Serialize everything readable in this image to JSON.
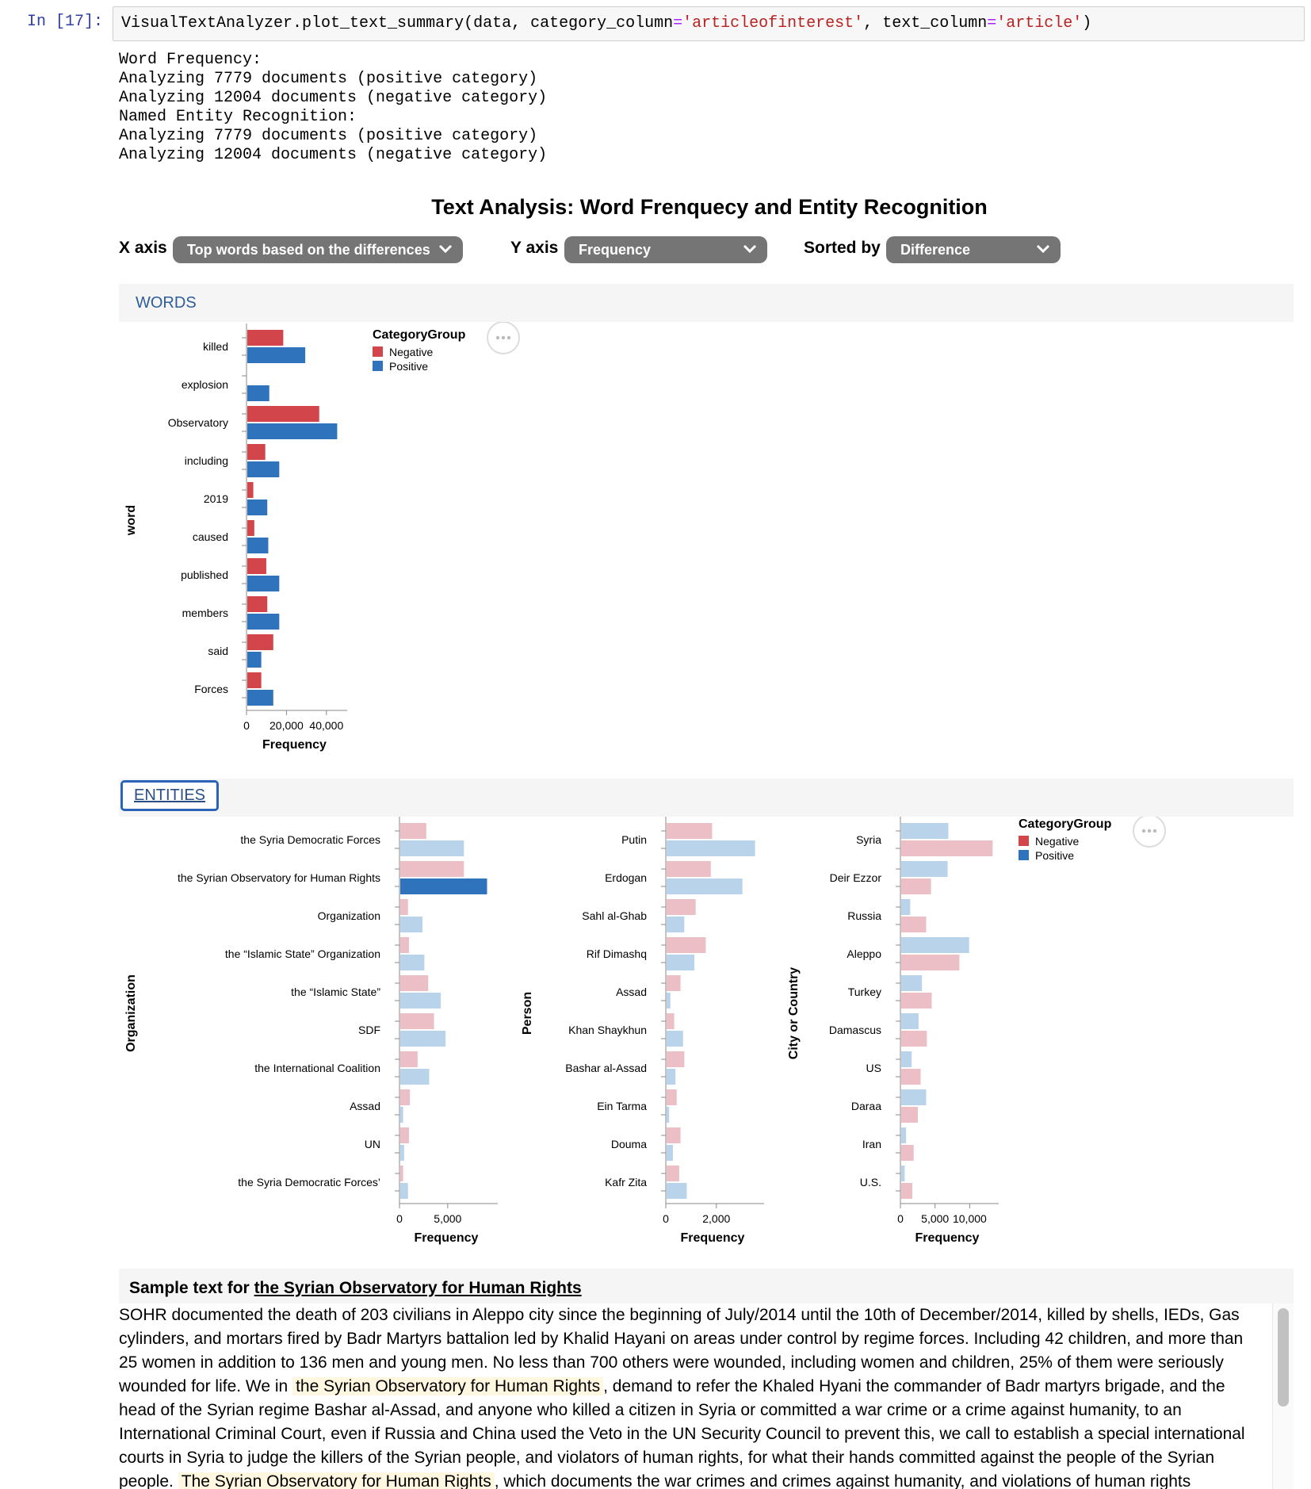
{
  "cell": {
    "prompt": "In [17]:",
    "code": {
      "pre": "VisualTextAnalyzer.plot_text_summary(data, category_column",
      "eq1": "=",
      "str1": "'articleofinterest'",
      "mid": ", text_column",
      "eq2": "=",
      "str2": "'article'",
      "post": ")"
    },
    "stdout": [
      "Word Frequency:",
      "Analyzing 7779 documents (positive category)",
      "Analyzing 12004 documents (negative category)",
      "Named Entity Recognition:",
      "Analyzing 7779 documents (positive category)",
      "Analyzing 12004 documents (negative category)"
    ]
  },
  "title": "Text Analysis: Word Frenquecy and Entity Recognition",
  "controls": {
    "x_label": "X axis",
    "x_value": "Top words based on the differences",
    "y_label": "Y axis",
    "y_value": "Frequency",
    "sort_label": "Sorted by",
    "sort_value": "Difference"
  },
  "tabs": {
    "words": "WORDS",
    "entities": "ENTITIES"
  },
  "colors": {
    "negative": "#d1454b",
    "positive": "#2f73bc",
    "negative_faded": "#ecbfc6",
    "positive_faded": "#b9d4ea",
    "highlight": "#fff7df"
  },
  "chart_data": [
    {
      "type": "bar",
      "orientation": "horizontal",
      "ylabel": "word",
      "xlabel": "Frequency",
      "xticks": [
        "0",
        "20,000",
        "40,000"
      ],
      "xlim": [
        0,
        48000
      ],
      "legend": {
        "title": "CategoryGroup",
        "items": [
          "Negative",
          "Positive"
        ],
        "placement": "top-right"
      },
      "categories": [
        "killed",
        "explosion",
        "Observatory",
        "including",
        "2019",
        "caused",
        "published",
        "members",
        "said",
        "Forces"
      ],
      "series": [
        {
          "name": "Negative",
          "values": [
            18000,
            0,
            36000,
            9000,
            3000,
            3500,
            9500,
            10000,
            13000,
            7000
          ]
        },
        {
          "name": "Positive",
          "values": [
            29000,
            11000,
            45000,
            16000,
            10000,
            10500,
            16000,
            16000,
            7000,
            13000
          ]
        }
      ]
    },
    {
      "type": "bar",
      "orientation": "horizontal",
      "ylabel": "Organization",
      "xlabel": "Frequency",
      "xticks": [
        "0",
        "5,000"
      ],
      "xlim": [
        0,
        9700
      ],
      "selected": "the Syrian Observatory for Human Rights",
      "categories": [
        "the Syria Democratic Forces",
        "the Syrian Observatory for Human Rights",
        "Organization",
        "the “Islamic State” Organization",
        "the “Islamic State”",
        "SDF",
        "the International Coalition",
        "Assad",
        "UN",
        "the Syria Democratic Forces’"
      ],
      "series": [
        {
          "name": "Negative",
          "values": [
            2700,
            6600,
            800,
            900,
            2900,
            3500,
            1800,
            1000,
            900,
            300
          ]
        },
        {
          "name": "Positive",
          "values": [
            6600,
            9000,
            2300,
            2500,
            4200,
            4700,
            3000,
            300,
            400,
            800
          ]
        }
      ]
    },
    {
      "type": "bar",
      "orientation": "horizontal",
      "ylabel": "Person",
      "xlabel": "Frequency",
      "xticks": [
        "0",
        "2,000"
      ],
      "xlim": [
        0,
        3700
      ],
      "categories": [
        "Putin",
        "Erdogan",
        "Sahl al-Ghab",
        "Rif Dimashq",
        "Assad",
        "Khan Shaykhun",
        "Bashar al-Assad",
        "Ein Tarma",
        "Douma",
        "Kafr Zita"
      ],
      "series": [
        {
          "name": "Negative",
          "values": [
            1800,
            1750,
            1150,
            1550,
            550,
            300,
            700,
            400,
            550,
            500
          ]
        },
        {
          "name": "Positive",
          "values": [
            3500,
            3000,
            700,
            1100,
            150,
            650,
            350,
            100,
            250,
            800
          ]
        }
      ]
    },
    {
      "type": "bar",
      "orientation": "horizontal",
      "ylabel": "City or Country",
      "xlabel": "Frequency",
      "xticks": [
        "0",
        "5,000",
        "10,000"
      ],
      "xlim": [
        0,
        13500
      ],
      "legend": {
        "title": "CategoryGroup",
        "items": [
          "Negative",
          "Positive"
        ],
        "placement": "top-right"
      },
      "categories": [
        "Syria",
        "Deir Ezzor",
        "Russia",
        "Aleppo",
        "Turkey",
        "Damascus",
        "US",
        "Daraa",
        "Iran",
        "U.S."
      ],
      "series": [
        {
          "name": "Positive",
          "values": [
            6800,
            6700,
            1300,
            9800,
            3000,
            2500,
            1500,
            3600,
            700,
            500
          ]
        },
        {
          "name": "Negative",
          "values": [
            13200,
            4300,
            3600,
            8400,
            4400,
            3700,
            2800,
            2400,
            1800,
            1600
          ]
        }
      ]
    }
  ],
  "sample": {
    "heading": "Sample text for",
    "entity": "the Syrian Observatory for Human Rights",
    "p1": "SOHR documented the death of 203 civilians in Aleppo city since the beginning of July/2014 until the 10th of December/2014, killed by shells, IEDs, Gas cylinders, and mortars fired by Badr Martyrs battalion led by Khalid Hayani on areas under control by regime forces. Including 42 children, and more than 25 women in addition to 136 men and young men. No less than 700 others were wounded, including women and children, 25% of them were seriously wounded for life. We in",
    "mark1": "the Syrian Observatory for Human Rights",
    "p2": ", demand to refer the Khaled Hyani the commander of Badr martyrs brigade, and the head of the Syrian regime Bashar al-Assad, and anyone who killed a citizen in Syria or committed a war crime or a crime against humanity, to an International Criminal Court, even if Russia and China used the Veto in the UN Security Council to prevent this, we call to establish a special international courts in Syria to judge the killers of the Syrian people, and violators of human rights, for what their hands committed against the people of the Syrian people.",
    "mark2": "The Syrian Observatory for Human Rights",
    "p3": ", which documents the war crimes and crimes against humanity, and violations of human rights"
  }
}
